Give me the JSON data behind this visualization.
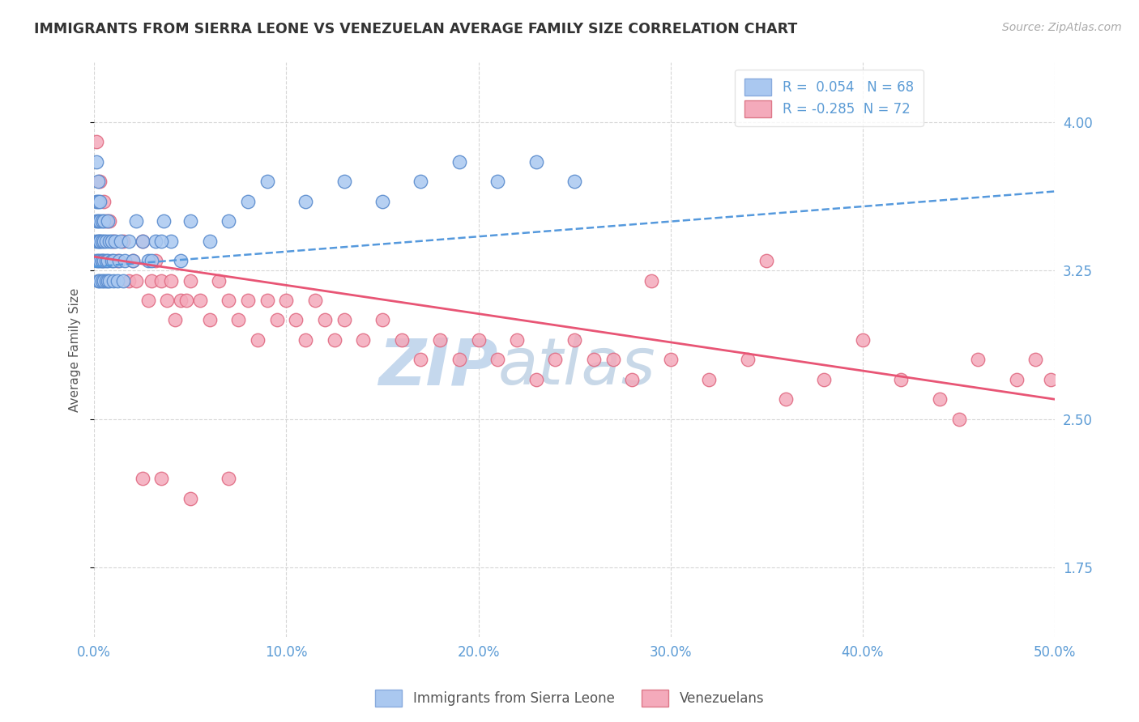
{
  "title": "IMMIGRANTS FROM SIERRA LEONE VS VENEZUELAN AVERAGE FAMILY SIZE CORRELATION CHART",
  "source": "Source: ZipAtlas.com",
  "ylabel": "Average Family Size",
  "xlim": [
    0.0,
    0.5
  ],
  "ylim": [
    1.4,
    4.3
  ],
  "yticks": [
    1.75,
    2.5,
    3.25,
    4.0
  ],
  "xticks": [
    0.0,
    0.1,
    0.2,
    0.3,
    0.4,
    0.5
  ],
  "xticklabels": [
    "0.0%",
    "10.0%",
    "20.0%",
    "30.0%",
    "40.0%",
    "50.0%"
  ],
  "sierra_leone_R": 0.054,
  "sierra_leone_N": 68,
  "venezuelan_R": -0.285,
  "venezuelan_N": 72,
  "sierra_leone_color": "#aac8f0",
  "venezuelan_color": "#f4aabb",
  "sierra_leone_edge": "#5588cc",
  "venezuelan_edge": "#e06880",
  "trend_blue_color": "#5599dd",
  "trend_pink_color": "#e85575",
  "background_color": "#ffffff",
  "grid_color": "#cccccc",
  "axis_color": "#5b9bd5",
  "title_color": "#333333",
  "watermark_zip_color": "#c8d8ec",
  "watermark_atlas_color": "#c8d8ec",
  "legend_box_color_blue": "#aac8f0",
  "legend_box_color_pink": "#f4aabb",
  "sl_x": [
    0.001,
    0.001,
    0.001,
    0.001,
    0.001,
    0.002,
    0.002,
    0.002,
    0.002,
    0.002,
    0.002,
    0.003,
    0.003,
    0.003,
    0.003,
    0.003,
    0.003,
    0.004,
    0.004,
    0.004,
    0.004,
    0.004,
    0.005,
    0.005,
    0.005,
    0.005,
    0.006,
    0.006,
    0.006,
    0.007,
    0.007,
    0.007,
    0.008,
    0.008,
    0.009,
    0.009,
    0.01,
    0.01,
    0.011,
    0.012,
    0.013,
    0.014,
    0.015,
    0.016,
    0.018,
    0.02,
    0.022,
    0.025,
    0.028,
    0.032,
    0.036,
    0.04,
    0.045,
    0.05,
    0.06,
    0.07,
    0.08,
    0.09,
    0.11,
    0.13,
    0.15,
    0.17,
    0.19,
    0.21,
    0.23,
    0.25,
    0.03,
    0.035
  ],
  "sl_y": [
    3.6,
    3.5,
    3.4,
    3.3,
    3.8,
    3.5,
    3.4,
    3.3,
    3.2,
    3.6,
    3.7,
    3.4,
    3.3,
    3.2,
    3.5,
    3.4,
    3.6,
    3.3,
    3.4,
    3.5,
    3.2,
    3.3,
    3.4,
    3.2,
    3.3,
    3.5,
    3.2,
    3.4,
    3.3,
    3.3,
    3.2,
    3.5,
    3.2,
    3.4,
    3.3,
    3.4,
    3.2,
    3.3,
    3.4,
    3.2,
    3.3,
    3.4,
    3.2,
    3.3,
    3.4,
    3.3,
    3.5,
    3.4,
    3.3,
    3.4,
    3.5,
    3.4,
    3.3,
    3.5,
    3.4,
    3.5,
    3.6,
    3.7,
    3.6,
    3.7,
    3.6,
    3.7,
    3.8,
    3.7,
    3.8,
    3.7,
    3.3,
    3.4
  ],
  "vn_x": [
    0.001,
    0.003,
    0.005,
    0.008,
    0.01,
    0.012,
    0.015,
    0.018,
    0.02,
    0.022,
    0.025,
    0.028,
    0.03,
    0.032,
    0.035,
    0.038,
    0.04,
    0.042,
    0.045,
    0.048,
    0.05,
    0.055,
    0.06,
    0.065,
    0.07,
    0.075,
    0.08,
    0.085,
    0.09,
    0.095,
    0.1,
    0.105,
    0.11,
    0.115,
    0.12,
    0.125,
    0.13,
    0.14,
    0.15,
    0.16,
    0.17,
    0.18,
    0.19,
    0.2,
    0.21,
    0.22,
    0.23,
    0.24,
    0.25,
    0.26,
    0.27,
    0.28,
    0.3,
    0.32,
    0.34,
    0.36,
    0.38,
    0.4,
    0.42,
    0.44,
    0.46,
    0.48,
    0.49,
    0.498,
    0.006,
    0.35,
    0.29,
    0.45,
    0.07,
    0.05,
    0.035,
    0.025
  ],
  "vn_y": [
    3.9,
    3.7,
    3.6,
    3.5,
    3.4,
    3.3,
    3.4,
    3.2,
    3.3,
    3.2,
    3.4,
    3.1,
    3.2,
    3.3,
    3.2,
    3.1,
    3.2,
    3.0,
    3.1,
    3.1,
    3.2,
    3.1,
    3.0,
    3.2,
    3.1,
    3.0,
    3.1,
    2.9,
    3.1,
    3.0,
    3.1,
    3.0,
    2.9,
    3.1,
    3.0,
    2.9,
    3.0,
    2.9,
    3.0,
    2.9,
    2.8,
    2.9,
    2.8,
    2.9,
    2.8,
    2.9,
    2.7,
    2.8,
    2.9,
    2.8,
    2.8,
    2.7,
    2.8,
    2.7,
    2.8,
    2.6,
    2.7,
    2.9,
    2.7,
    2.6,
    2.8,
    2.7,
    2.8,
    2.7,
    3.5,
    3.3,
    3.2,
    2.5,
    2.2,
    2.1,
    2.2,
    2.2
  ]
}
